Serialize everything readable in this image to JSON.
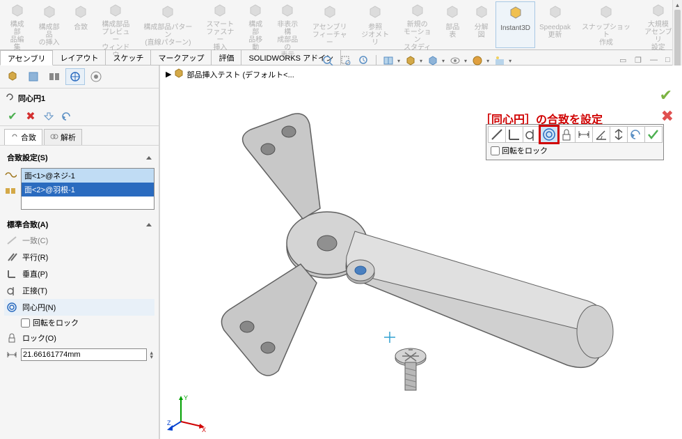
{
  "ribbon": {
    "items": [
      {
        "label": "構成部\n品編集",
        "dim": true
      },
      {
        "label": "構成部品\nの挿入",
        "dim": true
      },
      {
        "label": "合致",
        "dim": true
      },
      {
        "label": "構成部品\nプレビュー\nウィンドウ",
        "dim": true
      },
      {
        "label": "構成部品パターン\n(直線パターン)",
        "dim": true
      },
      {
        "label": "スマート\nファスナー\n挿入",
        "dim": true
      },
      {
        "label": "構成部\n品移動",
        "dim": true
      },
      {
        "label": "非表示構\n成部品の\n表示",
        "dim": true
      },
      {
        "label": "アセンブリ\nフィーチャー",
        "dim": true
      },
      {
        "label": "参照\nジオメトリ",
        "dim": true
      },
      {
        "label": "新規の\nモーション\nスタディ",
        "dim": true
      },
      {
        "label": "部品表",
        "dim": true
      },
      {
        "label": "分解図",
        "dim": true
      },
      {
        "label": "Instant3D",
        "dim": false,
        "active": true
      },
      {
        "label": "Speedpak\n更新",
        "dim": true
      },
      {
        "label": "スナップショット\n作成",
        "dim": true
      },
      {
        "label": "大規模\nアセンブリ\n設定",
        "dim": true
      }
    ]
  },
  "tabs": {
    "items": [
      "アセンブリ",
      "レイアウト",
      "スケッチ",
      "マークアップ",
      "評価",
      "SOLIDWORKS アドイン"
    ],
    "active_index": 0
  },
  "breadcrumb": {
    "label": "部品挿入テスト (デフォルト<...",
    "prefix": "▶"
  },
  "callout": "［同心円］の合致を設定",
  "mate_popup": {
    "icons": [
      "coincident",
      "perpendicular",
      "tangent",
      "concentric",
      "lock",
      "width",
      "angle",
      "flip",
      "undo",
      "ok"
    ],
    "highlight_index": 3,
    "lock_label": "回転をロック"
  },
  "property": {
    "title": "同心円1",
    "subtabs": [
      "合致",
      "解析"
    ],
    "subtab_active": 0,
    "section_settings": "合致設定(S)",
    "selections": [
      "面<1>@ネジ-1",
      "面<2>@羽根-1"
    ],
    "section_standard": "標準合致(A)",
    "mates": [
      {
        "label": "一致(C)",
        "icon": "coincident",
        "dim": true
      },
      {
        "label": "平行(R)",
        "icon": "parallel"
      },
      {
        "label": "垂直(P)",
        "icon": "perpendicular"
      },
      {
        "label": "正接(T)",
        "icon": "tangent"
      },
      {
        "label": "同心円(N)",
        "icon": "concentric",
        "active": true
      }
    ],
    "lock_rotation": "回転をロック",
    "lock_label": "ロック(O)",
    "distance_value": "21.66161774mm"
  },
  "colors": {
    "accent": "#2a6bbf",
    "highlight": "#d00000",
    "ok": "#4caf50",
    "cancel": "#d32f2f",
    "axis_x": "#d00000",
    "axis_y": "#00a000",
    "axis_z": "#0040d0",
    "model_fill": "#c8c8c8",
    "model_stroke": "#606060",
    "screw_fill": "#b8b8b8"
  }
}
